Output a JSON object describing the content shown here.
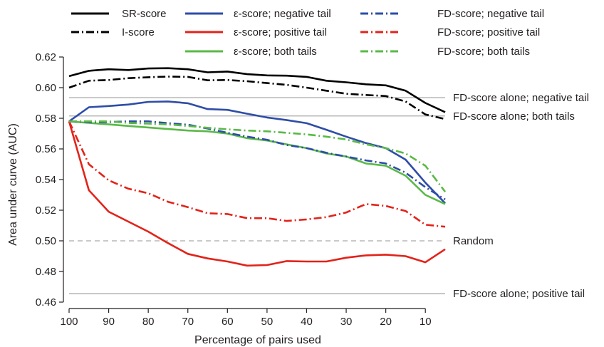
{
  "chart_data": {
    "type": "line",
    "title": "",
    "xlabel": "Percentage of pairs used",
    "ylabel": "Area under curve (AUC)",
    "xlim": [
      100,
      5
    ],
    "ylim": [
      0.46,
      0.62
    ],
    "x_reversed": true,
    "grid": false,
    "legend_position": "top",
    "x_ticks": [
      100,
      90,
      80,
      70,
      60,
      50,
      40,
      30,
      20,
      10
    ],
    "y_ticks": [
      0.46,
      0.48,
      0.5,
      0.52,
      0.54,
      0.56,
      0.58,
      0.6,
      0.62
    ],
    "x": [
      100,
      95,
      90,
      85,
      80,
      75,
      70,
      65,
      60,
      55,
      50,
      45,
      40,
      35,
      30,
      25,
      20,
      15,
      10,
      5
    ],
    "series": [
      {
        "name": "SR-score",
        "color": "#000000",
        "style": "solid",
        "values": [
          0.6075,
          0.611,
          0.612,
          0.6115,
          0.6125,
          0.6127,
          0.612,
          0.61,
          0.6105,
          0.6088,
          0.608,
          0.6078,
          0.607,
          0.6045,
          0.6035,
          0.6022,
          0.6015,
          0.598,
          0.59,
          0.584
        ]
      },
      {
        "name": "I-score",
        "color": "#000000",
        "style": "dashdot",
        "values": [
          0.6,
          0.6045,
          0.605,
          0.6062,
          0.6068,
          0.6072,
          0.607,
          0.6048,
          0.605,
          0.6042,
          0.603,
          0.6018,
          0.6,
          0.598,
          0.596,
          0.5952,
          0.5945,
          0.591,
          0.5825,
          0.5795
        ]
      },
      {
        "name": "ε-score; negative tail",
        "color": "#2e4da7",
        "style": "solid",
        "values": [
          0.578,
          0.5872,
          0.588,
          0.589,
          0.5907,
          0.591,
          0.5898,
          0.586,
          0.5855,
          0.583,
          0.5805,
          0.5788,
          0.5768,
          0.5725,
          0.568,
          0.5638,
          0.5605,
          0.553,
          0.538,
          0.5245
        ]
      },
      {
        "name": "ε-score; positive tail",
        "color": "#e2231a",
        "style": "solid",
        "values": [
          0.578,
          0.533,
          0.519,
          0.5125,
          0.506,
          0.4985,
          0.4915,
          0.4885,
          0.4865,
          0.4838,
          0.4842,
          0.4868,
          0.4865,
          0.4865,
          0.489,
          0.4905,
          0.491,
          0.49,
          0.486,
          0.4945
        ]
      },
      {
        "name": "ε-score; both tails",
        "color": "#5ab947",
        "style": "solid",
        "values": [
          0.578,
          0.577,
          0.576,
          0.575,
          0.574,
          0.573,
          0.572,
          0.5715,
          0.57,
          0.567,
          0.5655,
          0.563,
          0.5605,
          0.557,
          0.555,
          0.5505,
          0.549,
          0.5425,
          0.53,
          0.524
        ]
      },
      {
        "name": "FD-score; negative tail",
        "color": "#2e4da7",
        "style": "dashdot",
        "values": [
          0.578,
          0.5775,
          0.5775,
          0.578,
          0.578,
          0.5768,
          0.5758,
          0.5733,
          0.5705,
          0.568,
          0.566,
          0.5625,
          0.5605,
          0.5575,
          0.555,
          0.5525,
          0.5505,
          0.5445,
          0.535,
          0.527
        ]
      },
      {
        "name": "FD-score; positive tail",
        "color": "#e2231a",
        "style": "dashdot",
        "values": [
          0.578,
          0.55,
          0.5395,
          0.534,
          0.531,
          0.5255,
          0.522,
          0.518,
          0.5175,
          0.5148,
          0.5148,
          0.513,
          0.514,
          0.5155,
          0.5185,
          0.524,
          0.5228,
          0.5195,
          0.5105,
          0.5092
        ]
      },
      {
        "name": "FD-score; both tails",
        "color": "#5ab947",
        "style": "dashdot",
        "values": [
          0.578,
          0.578,
          0.578,
          0.577,
          0.5765,
          0.576,
          0.575,
          0.5738,
          0.5728,
          0.572,
          0.5715,
          0.5705,
          0.5695,
          0.568,
          0.5662,
          0.563,
          0.5605,
          0.557,
          0.549,
          0.532
        ]
      }
    ],
    "reference_lines": [
      {
        "label": "FD-score alone; negative tail",
        "y": 0.5935,
        "style": "solid",
        "color": "#aaaaaa"
      },
      {
        "label": "FD-score alone; both tails",
        "y": 0.5815,
        "style": "solid",
        "color": "#aaaaaa"
      },
      {
        "label": "Random",
        "y": 0.5,
        "style": "dashed",
        "color": "#aaaaaa"
      },
      {
        "label": "FD-score alone; positive tail",
        "y": 0.4655,
        "style": "solid",
        "color": "#aaaaaa"
      }
    ]
  }
}
